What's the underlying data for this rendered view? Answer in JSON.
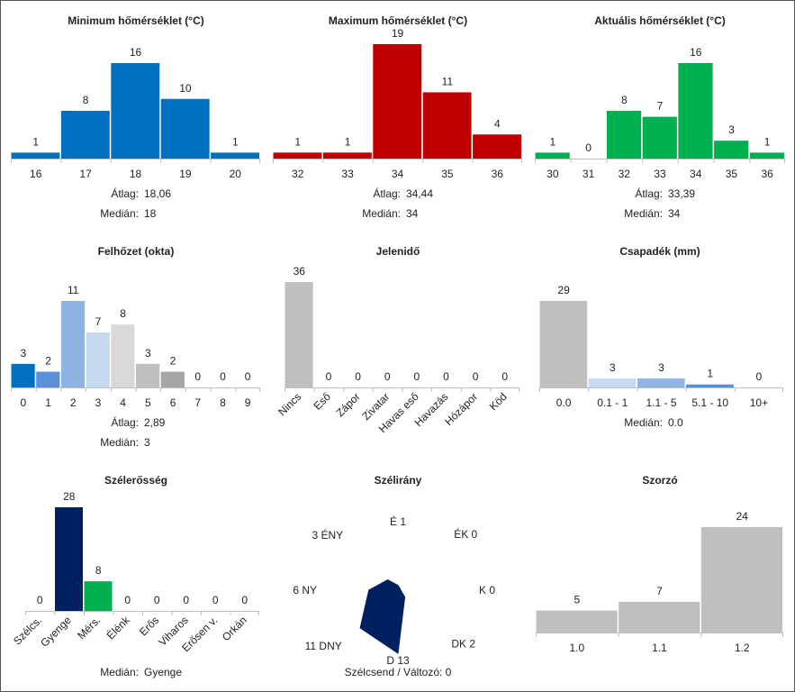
{
  "chart_data": [
    {
      "id": "min_temp",
      "type": "bar",
      "title": "Minimum hőmérséklet (°C)",
      "categories": [
        "16",
        "17",
        "18",
        "19",
        "20"
      ],
      "values": [
        1,
        8,
        16,
        10,
        1
      ],
      "colors": [
        "#0070c0",
        "#0070c0",
        "#0070c0",
        "#0070c0",
        "#0070c0"
      ],
      "stats": [
        {
          "label": "Átlag:",
          "value": "18,06"
        },
        {
          "label": "Medián:",
          "value": "18"
        }
      ]
    },
    {
      "id": "max_temp",
      "type": "bar",
      "title": "Maximum hőmérséklet (°C)",
      "categories": [
        "32",
        "33",
        "34",
        "35",
        "36"
      ],
      "values": [
        1,
        1,
        19,
        11,
        4
      ],
      "colors": [
        "#c00000",
        "#c00000",
        "#c00000",
        "#c00000",
        "#c00000"
      ],
      "stats": [
        {
          "label": "Átlag:",
          "value": "34,44"
        },
        {
          "label": "Medián:",
          "value": "34"
        }
      ]
    },
    {
      "id": "cur_temp",
      "type": "bar",
      "title": "Aktuális hőmérséklet (°C)",
      "categories": [
        "30",
        "31",
        "32",
        "33",
        "34",
        "35",
        "36"
      ],
      "values": [
        1,
        0,
        8,
        7,
        16,
        3,
        1
      ],
      "colors": [
        "#00b050",
        "#00b050",
        "#00b050",
        "#00b050",
        "#00b050",
        "#00b050",
        "#00b050"
      ],
      "stats": [
        {
          "label": "Átlag:",
          "value": "33,39"
        },
        {
          "label": "Medián:",
          "value": "34"
        }
      ]
    },
    {
      "id": "cloud",
      "type": "bar",
      "title": "Felhőzet (okta)",
      "categories": [
        "0",
        "1",
        "2",
        "3",
        "4",
        "5",
        "6",
        "7",
        "8",
        "9"
      ],
      "values": [
        3,
        2,
        11,
        7,
        8,
        3,
        2,
        0,
        0,
        0
      ],
      "colors": [
        "#0070c0",
        "#5b8fd8",
        "#8eb4e3",
        "#c5d9f1",
        "#d9d9d9",
        "#bfbfbf",
        "#a6a6a6",
        "#bfbfbf",
        "#bfbfbf",
        "#bfbfbf"
      ],
      "stats": [
        {
          "label": "Átlag:",
          "value": "2,89"
        },
        {
          "label": "Medián:",
          "value": "3"
        }
      ]
    },
    {
      "id": "weather",
      "type": "bar",
      "title": "Jelenidő",
      "categories": [
        "Nincs",
        "Eső",
        "Zápor",
        "Zivatar",
        "Havas eső",
        "Havazás",
        "Hózápor",
        "Köd"
      ],
      "values": [
        36,
        0,
        0,
        0,
        0,
        0,
        0,
        0
      ],
      "colors": [
        "#bfbfbf",
        "#bfbfbf",
        "#bfbfbf",
        "#bfbfbf",
        "#bfbfbf",
        "#bfbfbf",
        "#bfbfbf",
        "#bfbfbf"
      ],
      "rotate_labels": true,
      "stats": []
    },
    {
      "id": "precip",
      "type": "bar",
      "title": "Csapadék (mm)",
      "categories": [
        "0.0",
        "0.1 - 1",
        "1.1 - 5",
        "5.1 - 10",
        "10+"
      ],
      "values": [
        29,
        3,
        3,
        1,
        0
      ],
      "colors": [
        "#bfbfbf",
        "#c5d9f1",
        "#8eb4e3",
        "#5b8fd8",
        "#0070c0"
      ],
      "stats": [
        {
          "label": "Medián:",
          "value": "0.0"
        }
      ]
    },
    {
      "id": "wind_strength",
      "type": "bar",
      "title": "Szélerősség",
      "categories": [
        "Szélcs.",
        "Gyenge",
        "Mérs.",
        "Élénk",
        "Erős",
        "Viharos",
        "Erősen v.",
        "Orkán"
      ],
      "values": [
        0,
        28,
        8,
        0,
        0,
        0,
        0,
        0
      ],
      "colors": [
        "#bfbfbf",
        "#002060",
        "#00b050",
        "#bfbfbf",
        "#bfbfbf",
        "#bfbfbf",
        "#bfbfbf",
        "#bfbfbf"
      ],
      "rotate_labels": true,
      "stats": [
        {
          "label": "Medián:",
          "value": "Gyenge"
        }
      ]
    },
    {
      "id": "wind_dir",
      "type": "radar",
      "title": "Szélirány",
      "directions": [
        {
          "name": "É",
          "value": 1
        },
        {
          "name": "ÉK",
          "value": 0
        },
        {
          "name": "K",
          "value": 0
        },
        {
          "name": "DK",
          "value": 2
        },
        {
          "name": "D",
          "value": 13
        },
        {
          "name": "DNY",
          "value": 11
        },
        {
          "name": "NY",
          "value": 6
        },
        {
          "name": "ÉNY",
          "value": 3
        }
      ],
      "color": "#002060",
      "footer": "Szélcsend / Változó: 0"
    },
    {
      "id": "multiplier",
      "type": "bar",
      "title": "Szorzó",
      "categories": [
        "1.0",
        "1.1",
        "1.2"
      ],
      "values": [
        5,
        7,
        24
      ],
      "colors": [
        "#bfbfbf",
        "#bfbfbf",
        "#bfbfbf"
      ],
      "stats": []
    }
  ]
}
